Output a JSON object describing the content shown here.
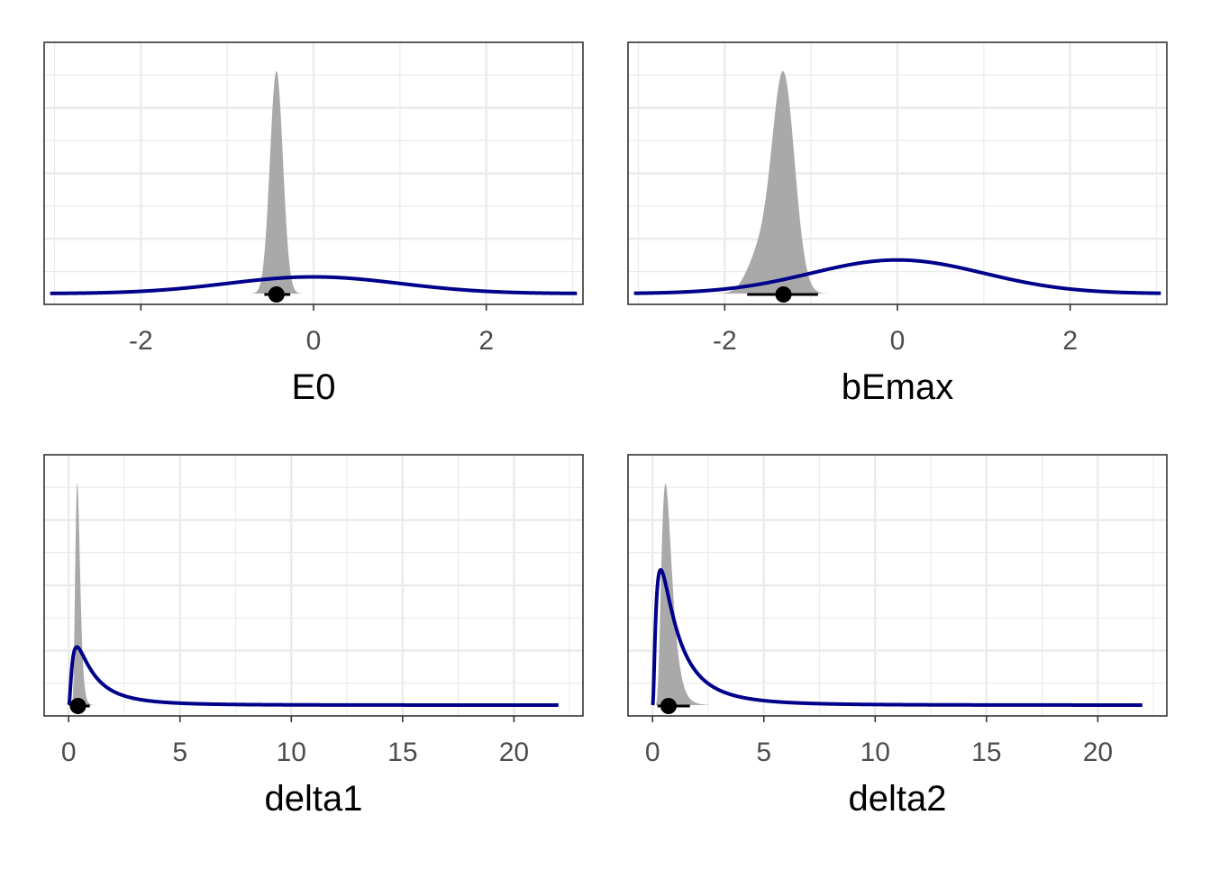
{
  "chart_data": [
    {
      "type": "area",
      "xlabel": "E0",
      "xlim": [
        -3.12,
        3.12
      ],
      "xticks": [
        -2,
        0,
        2
      ],
      "prior": {
        "dist": "normal",
        "mean": 0,
        "sd": 1,
        "color": "#00008B"
      },
      "posterior": {
        "dist": "normal",
        "mean": -0.43,
        "sd": 0.075,
        "min": -0.82,
        "max": -0.05,
        "color": "#A9A9A9"
      },
      "point": {
        "value": -0.43,
        "interval": [
          -0.57,
          -0.27
        ]
      },
      "ylim_peak_ratio": 0.905
    },
    {
      "type": "area",
      "xlabel": "bEmax",
      "xlim": [
        -3.12,
        3.12
      ],
      "xticks": [
        -2,
        0,
        2
      ],
      "prior": {
        "dist": "normal",
        "mean": 0,
        "sd": 1,
        "color": "#00008B"
      },
      "posterior": {
        "dist": "normal-mix",
        "components": [
          [
            -1.32,
            0.13,
            0.84
          ],
          [
            -1.6,
            0.14,
            0.16
          ]
        ],
        "min": -2.1,
        "max": -0.45,
        "color": "#A9A9A9"
      },
      "point": {
        "value": -1.32,
        "interval": [
          -1.74,
          -0.92
        ]
      },
      "ylim_peak_ratio": 0.905
    },
    {
      "type": "area",
      "xlabel": "delta1",
      "xlim": [
        -1.1,
        23.1
      ],
      "xticks": [
        0,
        5,
        10,
        15,
        20
      ],
      "prior": {
        "dist": "lognormal",
        "meanlog": 0,
        "sdlog": 1,
        "max": 22,
        "color": "#00008B"
      },
      "posterior": {
        "dist": "lognormal",
        "meanlog": -0.87,
        "sdlog": 0.28,
        "min": 0.12,
        "max": 1.25,
        "color": "#A9A9A9"
      },
      "point": {
        "value": 0.42,
        "interval": [
          0.18,
          0.95
        ]
      },
      "prior_ratio": 0.262
    },
    {
      "type": "area",
      "xlabel": "delta2",
      "xlim": [
        -1.1,
        23.1
      ],
      "xticks": [
        0,
        5,
        10,
        15,
        20
      ],
      "prior": {
        "dist": "lognormal",
        "meanlog": 0,
        "sdlog": 1,
        "max": 22,
        "color": "#00008B"
      },
      "posterior": {
        "dist": "lognormal",
        "meanlog": -0.38,
        "sdlog": 0.4,
        "min": 0.15,
        "max": 2.5,
        "color": "#A9A9A9"
      },
      "point": {
        "value": 0.72,
        "interval": [
          0.22,
          1.68
        ]
      },
      "prior_ratio": 0.61
    }
  ]
}
